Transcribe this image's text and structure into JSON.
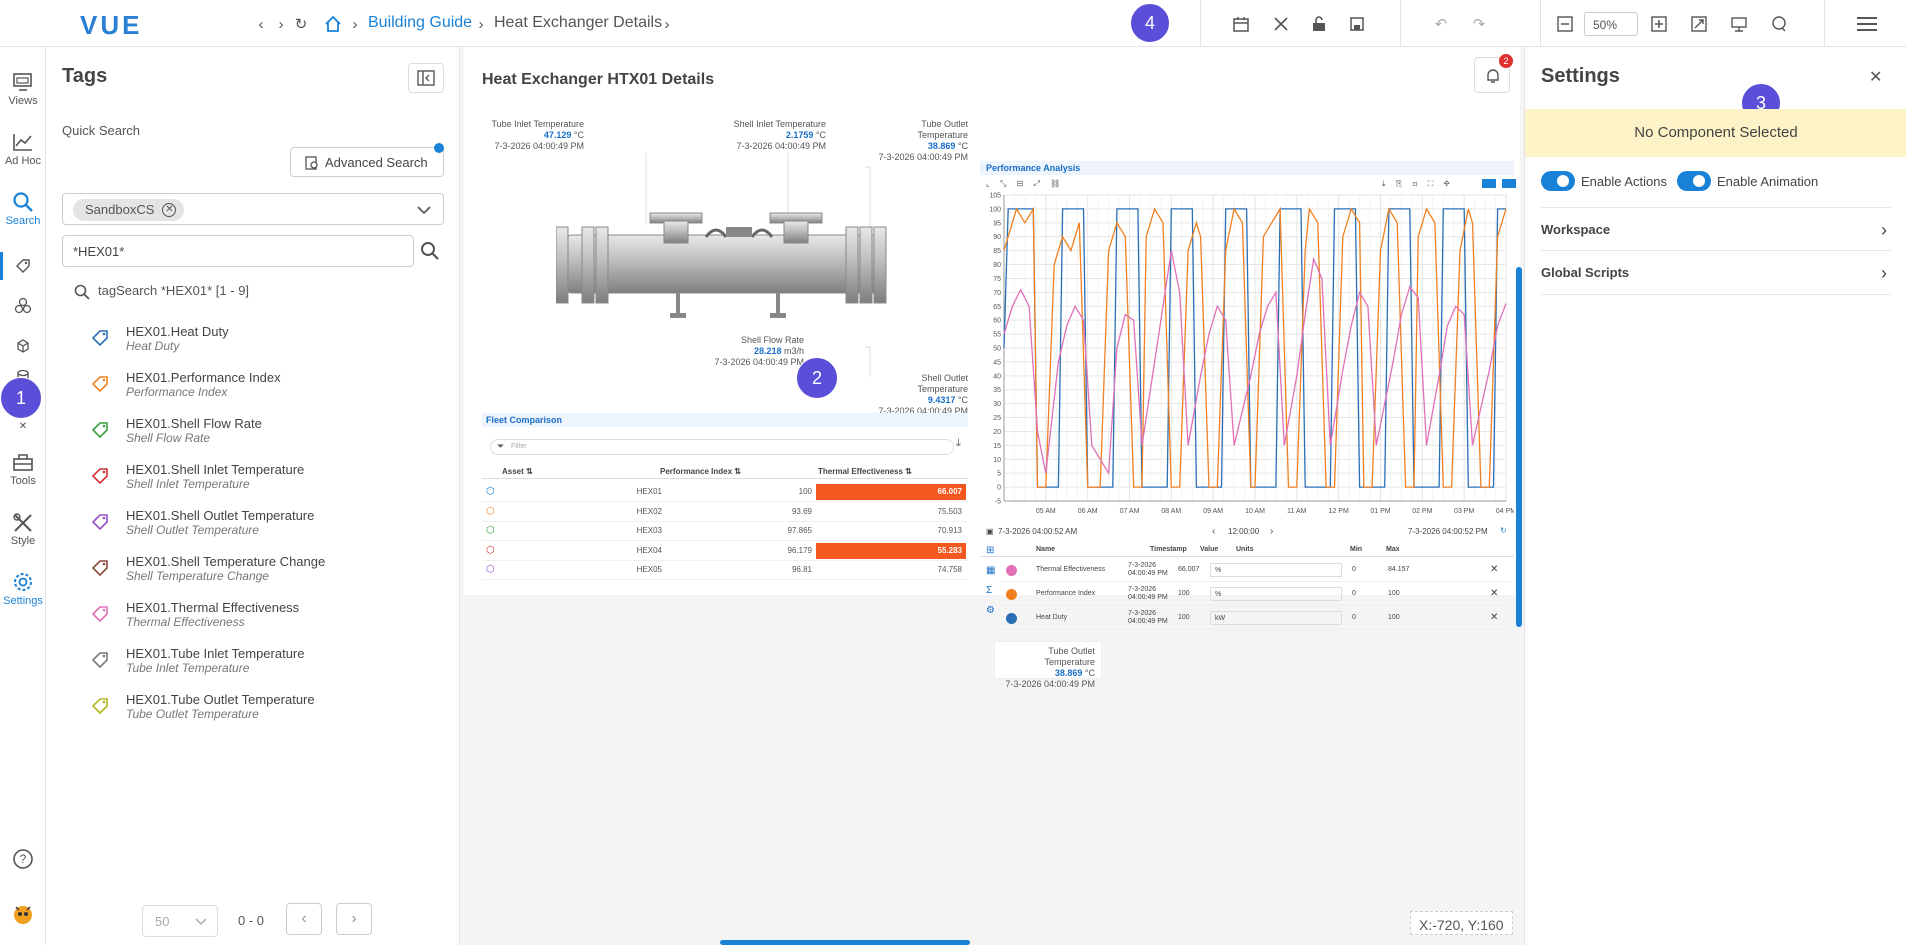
{
  "app": {
    "logo": "VUE"
  },
  "breadcrumb": {
    "items": [
      "Building Guide",
      "Heat Exchanger Details"
    ]
  },
  "badges": [
    "1",
    "2",
    "3",
    "4"
  ],
  "toolbar": {
    "zoom_value": "50%"
  },
  "rail": {
    "items": [
      "Views",
      "Ad Hoc",
      "Search",
      "Tools",
      "Style",
      "Settings"
    ]
  },
  "tags_panel": {
    "title": "Tags",
    "quick_search_label": "Quick Search",
    "advanced_search_label": "Advanced Search",
    "chip_label": "SandboxCS",
    "search_value": "*HEX01*",
    "result_summary": "tagSearch *HEX01* [1 - 9]",
    "items": [
      {
        "name": "HEX01.Heat Duty",
        "desc": "Heat Duty",
        "color": "#2a6fb5"
      },
      {
        "name": "HEX01.Performance Index",
        "desc": "Performance Index",
        "color": "#f08020"
      },
      {
        "name": "HEX01.Shell Flow Rate",
        "desc": "Shell Flow Rate",
        "color": "#3aa040"
      },
      {
        "name": "HEX01.Shell Inlet Temperature",
        "desc": "Shell Inlet Temperature",
        "color": "#d63030"
      },
      {
        "name": "HEX01.Shell Outlet Temperature",
        "desc": "Shell Outlet Temperature",
        "color": "#9550c8"
      },
      {
        "name": "HEX01.Shell Temperature Change",
        "desc": "Shell Temperature Change",
        "color": "#8a4a3a"
      },
      {
        "name": "HEX01.Thermal Effectiveness",
        "desc": "Thermal Effectiveness",
        "color": "#e070b8"
      },
      {
        "name": "HEX01.Tube Inlet Temperature",
        "desc": "Tube Inlet Temperature",
        "color": "#7a7a7a"
      },
      {
        "name": "HEX01.Tube Outlet Temperature",
        "desc": "Tube Outlet Temperature",
        "color": "#b0b820"
      }
    ],
    "pager": {
      "page_size": "50",
      "range": "0 - 0"
    }
  },
  "canvas": {
    "title": "Heat Exchanger HTX01 Details",
    "notification_count": "2",
    "coords": "X:-720, Y:160",
    "tag_values": [
      {
        "label": "Tube Inlet Temperature",
        "value": "47.129",
        "unit": "°C",
        "ts": "7-3-2026 04:00:49 PM"
      },
      {
        "label": "Shell Inlet Temperature",
        "value": "2.1759",
        "unit": "°C",
        "ts": "7-3-2026 04:00:49 PM"
      },
      {
        "label": "Tube Outlet Temperature",
        "value": "38.869",
        "unit": "°C",
        "ts": "7-3-2026 04:00:49 PM"
      },
      {
        "label": "Shell Flow Rate",
        "value": "28.218",
        "unit": "m3/h",
        "ts": "7-3-2026 04:00:49 PM"
      },
      {
        "label": "Shell Outlet Temperature",
        "value": "9.4317",
        "unit": "°C",
        "ts": "7-3-2026 04:00:49 PM"
      },
      {
        "label": "Tube Outlet Temperature",
        "value": "38.869",
        "unit": "°C",
        "ts": "7-3-2026 04:00:49 PM"
      }
    ],
    "fleet": {
      "title": "Fleet Comparison",
      "filter_placeholder": "Filter",
      "columns": [
        "Asset",
        "Performance Index",
        "Thermal Effectiveness"
      ],
      "rows": [
        {
          "asset": "HEX01",
          "pi": "100",
          "te": "66.007",
          "hl": true,
          "color": "#1a82d6"
        },
        {
          "asset": "HEX02",
          "pi": "93.69",
          "te": "75.503",
          "hl": false,
          "color": "#f08020"
        },
        {
          "asset": "HEX03",
          "pi": "97.865",
          "te": "70.913",
          "hl": false,
          "color": "#3aa040"
        },
        {
          "asset": "HEX04",
          "pi": "96.179",
          "te": "55.283",
          "hl": true,
          "color": "#d63030"
        },
        {
          "asset": "HEX05",
          "pi": "96.81",
          "te": "74.758",
          "hl": false,
          "color": "#9550c8"
        }
      ]
    },
    "perf": {
      "title": "Performance Analysis",
      "start": "7-3-2026 04:00:52 AM",
      "span": "12:00:00",
      "end": "7-3-2026 04:00:52 PM",
      "grid_cols": [
        "Name",
        "Timestamp",
        "Value",
        "Units",
        "Min",
        "Max"
      ],
      "grid_rows": [
        {
          "name": "Thermal Effectiveness",
          "ts": "7-3-2026 04:00:49 PM",
          "value": "66.007",
          "unit": "%",
          "min": "0",
          "max": "84.157",
          "color": "#e070b8"
        },
        {
          "name": "Performance Index",
          "ts": "7-3-2026 04:00:49 PM",
          "value": "100",
          "unit": "%",
          "min": "0",
          "max": "100",
          "color": "#f08020"
        },
        {
          "name": "Heat Duty",
          "ts": "7-3-2026 04:00:49 PM",
          "value": "100",
          "unit": "kW",
          "min": "0",
          "max": "100",
          "color": "#2a6fb5"
        }
      ]
    }
  },
  "chart_data": {
    "type": "line",
    "title": "Performance Analysis",
    "xlabel": "",
    "ylabel": "",
    "ylim": [
      -5,
      105
    ],
    "yticks": [
      -5,
      0,
      5,
      10,
      15,
      20,
      25,
      30,
      35,
      40,
      45,
      50,
      55,
      60,
      65,
      70,
      75,
      80,
      85,
      90,
      95,
      100,
      105
    ],
    "x_ticks": [
      "05 AM",
      "06 AM",
      "07 AM",
      "08 AM",
      "09 AM",
      "10 AM",
      "11 AM",
      "12 PM",
      "01 PM",
      "02 PM",
      "03 PM",
      "04 PM"
    ],
    "xlim": [
      4.0,
      16.0
    ],
    "grid": true,
    "series": [
      {
        "name": "Heat Duty",
        "color": "#2a6fb5",
        "x": [
          4.0,
          4.1,
          4.2,
          4.7,
          4.8,
          5.0,
          5.1,
          5.3,
          5.4,
          5.9,
          6.0,
          6.3,
          6.4,
          6.6,
          6.7,
          7.2,
          7.3,
          7.6,
          7.7,
          7.9,
          8.0,
          8.5,
          8.6,
          8.9,
          9.0,
          9.2,
          9.3,
          9.8,
          9.9,
          10.2,
          10.3,
          10.5,
          10.6,
          11.1,
          11.2,
          11.5,
          11.6,
          11.8,
          11.9,
          12.4,
          12.5,
          12.8,
          12.9,
          13.1,
          13.2,
          13.7,
          13.8,
          14.1,
          14.2,
          14.4,
          14.5,
          15.0,
          15.1,
          15.4,
          15.5,
          15.7,
          15.8,
          16.0
        ],
        "y": [
          50,
          100,
          100,
          100,
          0,
          0,
          0,
          0,
          100,
          100,
          0,
          0,
          0,
          0,
          100,
          100,
          0,
          0,
          0,
          0,
          100,
          100,
          0,
          0,
          0,
          0,
          100,
          100,
          0,
          0,
          0,
          0,
          100,
          100,
          0,
          0,
          0,
          0,
          100,
          100,
          0,
          0,
          0,
          0,
          100,
          100,
          0,
          0,
          0,
          0,
          100,
          100,
          0,
          0,
          0,
          0,
          100,
          100
        ]
      },
      {
        "name": "Performance Index",
        "color": "#f08020",
        "x": [
          4.0,
          4.3,
          4.5,
          4.7,
          4.8,
          5.0,
          5.2,
          5.4,
          5.6,
          5.8,
          6.0,
          6.1,
          6.3,
          6.5,
          6.7,
          6.9,
          7.1,
          7.3,
          7.4,
          7.6,
          7.8,
          8.0,
          8.2,
          8.4,
          8.6,
          8.7,
          8.9,
          9.1,
          9.3,
          9.5,
          9.7,
          9.9,
          10.0,
          10.2,
          10.4,
          10.6,
          10.8,
          11.0,
          11.2,
          11.3,
          11.5,
          11.7,
          11.9,
          12.1,
          12.3,
          12.5,
          12.6,
          12.8,
          13.0,
          13.2,
          13.4,
          13.6,
          13.8,
          13.9,
          14.1,
          14.3,
          14.5,
          14.7,
          14.9,
          15.1,
          15.2,
          15.4,
          15.6,
          15.8,
          16.0
        ],
        "y": [
          85,
          100,
          95,
          100,
          0,
          0,
          80,
          90,
          85,
          95,
          0,
          0,
          0,
          85,
          95,
          90,
          0,
          0,
          90,
          100,
          95,
          0,
          0,
          85,
          95,
          90,
          0,
          0,
          85,
          100,
          95,
          0,
          0,
          90,
          95,
          100,
          0,
          0,
          85,
          100,
          95,
          0,
          0,
          90,
          100,
          95,
          0,
          0,
          85,
          100,
          95,
          0,
          0,
          90,
          100,
          95,
          0,
          0,
          85,
          100,
          95,
          0,
          0,
          90,
          100
        ]
      },
      {
        "name": "Thermal Effectiveness",
        "color": "#e070b8",
        "x": [
          4.0,
          4.2,
          4.4,
          4.6,
          4.8,
          5.0,
          5.3,
          5.5,
          5.7,
          5.9,
          6.1,
          6.5,
          6.7,
          6.9,
          7.1,
          7.3,
          7.6,
          7.8,
          8.0,
          8.2,
          8.4,
          8.7,
          8.9,
          9.1,
          9.3,
          9.5,
          9.9,
          10.1,
          10.3,
          10.5,
          10.7,
          11.0,
          11.2,
          11.4,
          11.6,
          11.8,
          12.1,
          12.3,
          12.5,
          12.7,
          12.9,
          13.3,
          13.5,
          13.7,
          13.9,
          14.1,
          14.4,
          14.6,
          14.8,
          15.0,
          15.2,
          15.6,
          15.8,
          16.0
        ],
        "y": [
          55,
          65,
          71,
          65,
          20,
          5,
          45,
          58,
          65,
          60,
          15,
          5,
          50,
          62,
          60,
          15,
          45,
          65,
          85,
          70,
          15,
          40,
          55,
          65,
          60,
          15,
          40,
          55,
          65,
          70,
          15,
          40,
          62,
          82,
          75,
          15,
          42,
          58,
          70,
          65,
          15,
          45,
          62,
          72,
          68,
          15,
          40,
          58,
          65,
          62,
          15,
          42,
          58,
          66
        ]
      }
    ]
  }
}
